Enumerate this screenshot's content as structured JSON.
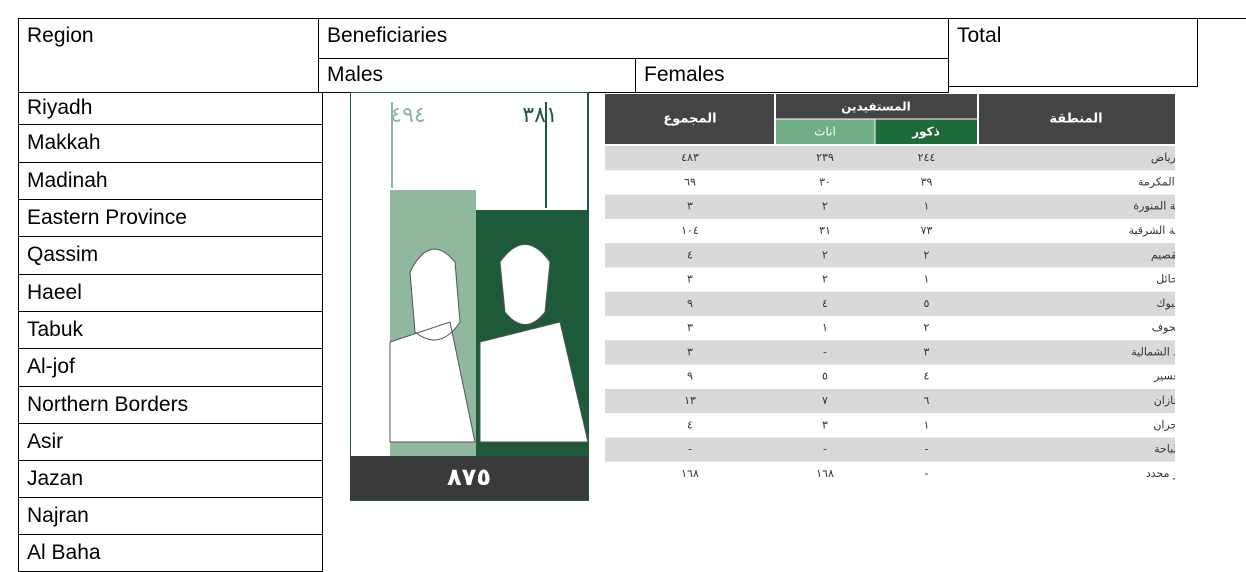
{
  "table": {
    "header": {
      "region": "Region",
      "beneficiaries": "Beneficiaries",
      "total": "Total",
      "males": "Males",
      "females": "Females"
    },
    "rows": [
      "Riyadh",
      "Makkah",
      "Madinah",
      "Eastern Province",
      "Qassim",
      "Haeel",
      "Tabuk",
      "Al-jof",
      "Northern Borders",
      "Asir",
      "Jazan",
      "Najran",
      "Al Baha"
    ]
  },
  "image": {
    "males": "٣٨١",
    "females": "٤٩٤",
    "total": "٨٧٥",
    "table": {
      "headers": {
        "total": "المجموع",
        "beneficiaries": "المستفيدين",
        "females": "اناث",
        "males": "ذكور",
        "region": "المنطقة"
      },
      "rows": [
        [
          "الرياض",
          "٢٤٤",
          "٢٣٩",
          "٤٨٣"
        ],
        [
          "مكة المكرمة",
          "٣٩",
          "٣٠",
          "٦٩"
        ],
        [
          "المدينة المنورة",
          "١",
          "٢",
          "٣"
        ],
        [
          "المنطقة الشرقية",
          "٧٣",
          "٣١",
          "١٠٤"
        ],
        [
          "القصيم",
          "٢",
          "٢",
          "٤"
        ],
        [
          "حائل",
          "١",
          "٢",
          "٣"
        ],
        [
          "تبوك",
          "٥",
          "٤",
          "٩"
        ],
        [
          "الجوف",
          "٢",
          "١",
          "٣"
        ],
        [
          "الحدود الشمالية",
          "٣",
          "-",
          "٣"
        ],
        [
          "عسير",
          "٤",
          "٥",
          "٩"
        ],
        [
          "جازان",
          "٦",
          "٧",
          "١٣"
        ],
        [
          "نجران",
          "١",
          "٣",
          "٤"
        ],
        [
          "الباحة",
          "-",
          "-",
          "-"
        ],
        [
          "غير محدد",
          "-",
          "١٦٨",
          "١٦٨"
        ]
      ]
    }
  }
}
